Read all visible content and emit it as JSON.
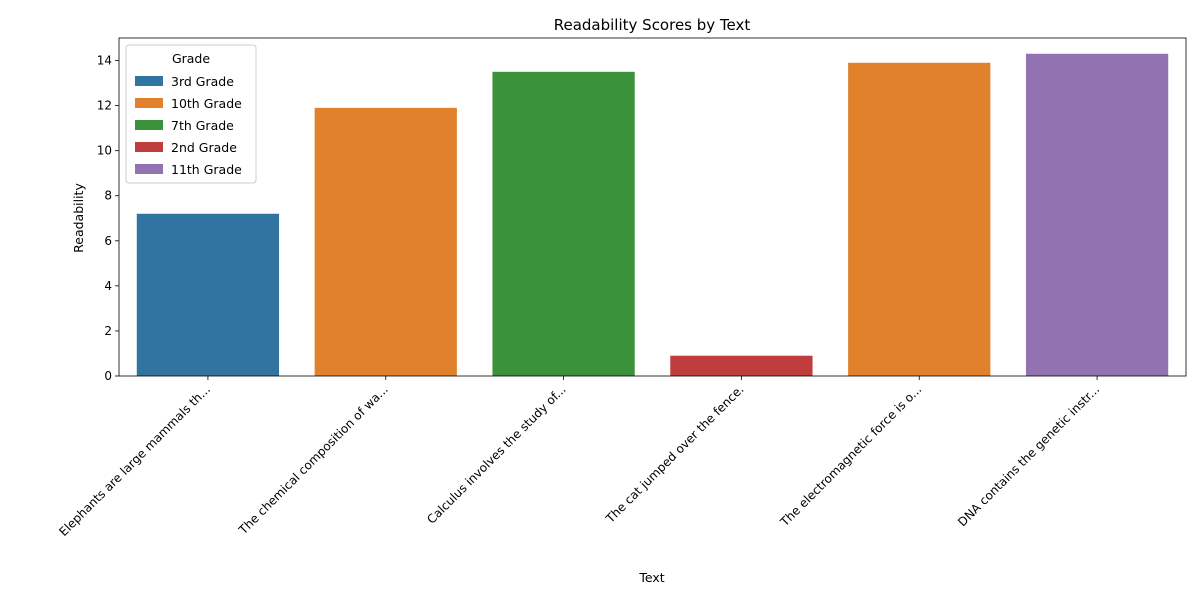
{
  "chart_data": {
    "type": "bar",
    "title": "Readability Scores by Text",
    "xlabel": "Text",
    "ylabel": "Readability",
    "ylim": [
      0,
      15
    ],
    "yticks": [
      0,
      2,
      4,
      6,
      8,
      10,
      12,
      14
    ],
    "categories": [
      "Elephants are large mammals th...",
      "The chemical composition of wa...",
      "Calculus involves the study of...",
      "The cat jumped over the fence.",
      "The electromagnetic force is o...",
      "DNA contains the genetic instr..."
    ],
    "values": [
      7.2,
      11.9,
      13.5,
      0.9,
      13.9,
      14.3
    ],
    "grades": [
      "3rd Grade",
      "10th Grade",
      "7th Grade",
      "2nd Grade",
      "10th Grade",
      "11th Grade"
    ],
    "legend": {
      "title": "Grade",
      "position": "top-left",
      "entries": [
        {
          "label": "3rd Grade",
          "color": "#3274a1"
        },
        {
          "label": "10th Grade",
          "color": "#e1812c"
        },
        {
          "label": "7th Grade",
          "color": "#3a923a"
        },
        {
          "label": "2nd Grade",
          "color": "#c03d3e"
        },
        {
          "label": "11th Grade",
          "color": "#9372b2"
        }
      ]
    },
    "grid": false
  }
}
